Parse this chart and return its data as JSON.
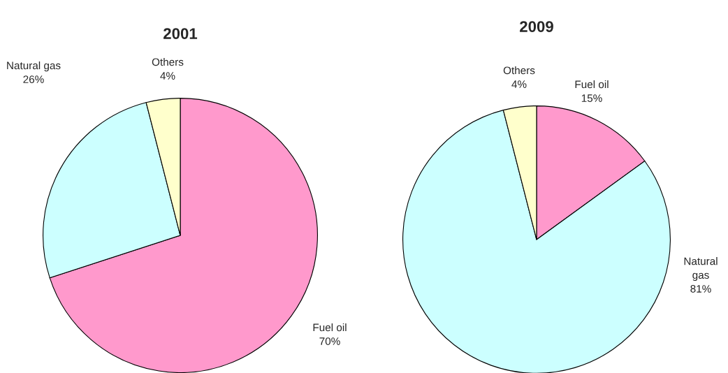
{
  "chart_data": [
    {
      "type": "pie",
      "title": "2001",
      "categories": [
        "Fuel oil",
        "Natural gas",
        "Others"
      ],
      "values": [
        70,
        26,
        4
      ],
      "value_labels": [
        "70%",
        "26%",
        "4%"
      ],
      "colors": [
        "#ff99cc",
        "#ccffff",
        "#ffffcc"
      ]
    },
    {
      "type": "pie",
      "title": "2009",
      "categories": [
        "Fuel oil",
        "Natural gas",
        "Others"
      ],
      "values": [
        15,
        81,
        4
      ],
      "value_labels": [
        "15%",
        "81%",
        "4%"
      ],
      "colors": [
        "#ff99cc",
        "#ccffff",
        "#ffffcc"
      ]
    }
  ]
}
